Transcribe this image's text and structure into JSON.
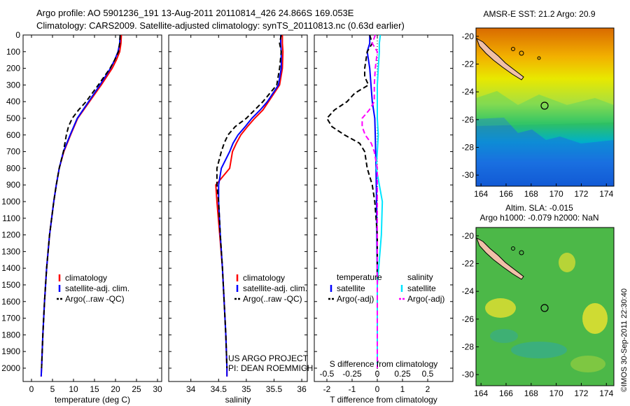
{
  "header": {
    "line1": "Argo profile: AO 5901236_191 13-Aug-2011 20110814_426 24.866S 169.053E",
    "line2": "Climatology: CARS2009. Satellite-adjusted climatology: synTS_20110813.nc (0.63d earlier)"
  },
  "credit": "©IMOS 30-Sep-2011 22:30:40",
  "colors": {
    "climatology": "#ff0000",
    "satellite": "#0000ff",
    "argo": "#000000",
    "sat_s": "#00e5ff",
    "argo_s": "#ff00ff"
  },
  "chart_data": [
    {
      "type": "line",
      "panel": "temperature",
      "xlabel": "temperature (deg C)",
      "ylabel": "",
      "xlim": [
        -2,
        31
      ],
      "ylim": [
        2080,
        0
      ],
      "x_ticks": [
        0,
        5,
        10,
        15,
        20,
        25,
        30
      ],
      "y_ticks": [
        0,
        100,
        200,
        300,
        400,
        500,
        600,
        700,
        800,
        900,
        1000,
        1100,
        1200,
        1300,
        1400,
        1500,
        1600,
        1700,
        1800,
        1900,
        2000
      ],
      "legend": [
        "climatology",
        "satellite-adj. clim.",
        "Argo(..raw -QC)"
      ],
      "series": [
        {
          "name": "climatology",
          "style": "solid",
          "color": "#ff0000",
          "depth": [
            0,
            50,
            100,
            150,
            200,
            300,
            400,
            500,
            600,
            700,
            800,
            900,
            1000,
            1200,
            1400,
            1600,
            1800,
            2000,
            2050
          ],
          "values": [
            21.4,
            21.3,
            21.0,
            20.2,
            19.2,
            16.6,
            13.8,
            11.0,
            9.3,
            7.7,
            6.6,
            5.9,
            5.3,
            4.3,
            3.6,
            3.1,
            2.7,
            2.4,
            2.3
          ]
        },
        {
          "name": "satellite-adj. clim.",
          "style": "solid",
          "color": "#0000ff",
          "depth": [
            0,
            50,
            100,
            150,
            200,
            300,
            400,
            500,
            600,
            700,
            800,
            900,
            1000,
            1200,
            1400,
            1600,
            1800,
            2000,
            2050
          ],
          "values": [
            21.1,
            21.0,
            20.6,
            19.8,
            18.8,
            16.3,
            13.6,
            10.9,
            9.2,
            7.6,
            6.6,
            5.9,
            5.3,
            4.3,
            3.6,
            3.1,
            2.7,
            2.4,
            2.3
          ]
        },
        {
          "name": "Argo(..raw -QC)",
          "style": "dashed",
          "color": "#000000",
          "depth": [
            0,
            50,
            100,
            150,
            200,
            300,
            400,
            450,
            500,
            550,
            600,
            700,
            800,
            900,
            1000,
            1200,
            1400,
            1600,
            1800,
            2000
          ],
          "values": [
            21.1,
            21.0,
            20.7,
            19.8,
            18.7,
            15.9,
            13.0,
            11.2,
            9.7,
            8.8,
            8.3,
            7.6,
            6.6,
            5.9,
            5.3,
            4.3,
            3.6,
            3.1,
            2.7,
            2.4
          ]
        }
      ]
    },
    {
      "type": "line",
      "panel": "salinity",
      "xlabel": "salinity",
      "ylabel": "",
      "xlim": [
        33.6,
        36.1
      ],
      "ylim": [
        2080,
        0
      ],
      "x_ticks": [
        34,
        34.5,
        35,
        35.5,
        36
      ],
      "legend": [
        "climatology",
        "satellite-adj. clim.",
        "Argo(..raw -QC)"
      ],
      "annotation": [
        "US ARGO PROJECT",
        "PI: DEAN ROEMMICH"
      ],
      "series": [
        {
          "name": "climatology",
          "style": "solid",
          "color": "#ff0000",
          "depth": [
            0,
            50,
            100,
            200,
            300,
            400,
            450,
            500,
            550,
            600,
            650,
            700,
            800,
            900,
            1000,
            1200,
            1400,
            1600,
            1800,
            2000,
            2050
          ],
          "values": [
            35.65,
            35.65,
            35.66,
            35.65,
            35.6,
            35.4,
            35.3,
            35.15,
            35.02,
            34.9,
            34.82,
            34.75,
            34.7,
            34.45,
            34.47,
            34.52,
            34.57,
            34.6,
            34.63,
            34.65,
            34.65
          ]
        },
        {
          "name": "satellite-adj. clim.",
          "style": "solid",
          "color": "#0000ff",
          "depth": [
            0,
            50,
            100,
            200,
            300,
            400,
            450,
            500,
            550,
            600,
            650,
            700,
            800,
            900,
            1000,
            1200,
            1400,
            1600,
            1800,
            2000,
            2050
          ],
          "values": [
            35.62,
            35.62,
            35.63,
            35.63,
            35.58,
            35.38,
            35.25,
            35.1,
            34.98,
            34.85,
            34.76,
            34.7,
            34.55,
            34.5,
            34.5,
            34.53,
            34.57,
            34.6,
            34.63,
            34.65,
            34.65
          ]
        },
        {
          "name": "Argo(..raw -QC)",
          "style": "dashed",
          "color": "#000000",
          "depth": [
            0,
            50,
            100,
            200,
            300,
            400,
            450,
            500,
            550,
            600,
            650,
            700,
            800,
            900,
            1000,
            1200,
            1400,
            1600,
            1800,
            2000
          ],
          "values": [
            35.63,
            35.6,
            35.63,
            35.6,
            35.55,
            35.3,
            35.15,
            35.0,
            34.8,
            34.67,
            34.6,
            34.55,
            34.47,
            34.47,
            34.5,
            34.53,
            34.57,
            34.6,
            34.63,
            34.65
          ]
        }
      ]
    },
    {
      "type": "line",
      "panel": "difference",
      "xlabel": "T difference from climatology",
      "x2label": "S difference from climatology",
      "xlim": [
        -2.5,
        3
      ],
      "x_ticks": [
        -2,
        -1,
        0,
        1,
        2
      ],
      "x2_ticks": [
        "-0.5",
        "-0.25",
        "0",
        "0.25",
        "0.5"
      ],
      "legend_temperature": {
        "title": "temperature",
        "items": [
          "satellite",
          "Argo(-adj)"
        ]
      },
      "legend_salinity": {
        "title": "salinity",
        "items": [
          "satellite",
          "Argo(-adj)"
        ]
      },
      "series": [
        {
          "name": "temperature satellite",
          "style": "solid",
          "color": "#0000ff",
          "depth": [
            0,
            50,
            100,
            200,
            300,
            400,
            500,
            600,
            800,
            1000,
            1500,
            2000
          ],
          "values": [
            -0.3,
            -0.3,
            -0.4,
            -0.3,
            -0.25,
            -0.2,
            -0.1,
            -0.08,
            -0.05,
            -0.03,
            0,
            0
          ]
        },
        {
          "name": "temperature Argo(-adj)",
          "style": "dashed",
          "color": "#000000",
          "depth": [
            0,
            50,
            100,
            200,
            250,
            300,
            350,
            400,
            450,
            500,
            550,
            600,
            650,
            700,
            800,
            900,
            1000,
            1200,
            1500,
            2000
          ],
          "values": [
            -0.3,
            -0.2,
            -0.4,
            -0.5,
            -0.5,
            -0.35,
            -0.9,
            -1.2,
            -1.7,
            -2.0,
            -1.8,
            -1.3,
            -0.7,
            -0.5,
            -0.4,
            -0.2,
            -0.1,
            0,
            0,
            0
          ]
        },
        {
          "name": "salinity satellite",
          "style": "solid",
          "color": "#00e5ff",
          "depth": [
            0,
            50,
            100,
            200,
            300,
            400,
            500,
            600,
            700,
            800,
            900,
            1000,
            1200,
            1500,
            1800,
            2000
          ],
          "values": [
            0.03,
            0.02,
            0.02,
            0.01,
            0.0,
            0.0,
            0.0,
            0.01,
            0.0,
            -0.01,
            0.02,
            0.05,
            0.04,
            0.0,
            0.0,
            0.0
          ]
        },
        {
          "name": "salinity Argo(-adj)",
          "style": "dashed",
          "color": "#ff00ff",
          "depth": [
            0,
            50,
            100,
            200,
            300,
            400,
            450,
            500,
            550,
            600,
            650,
            700,
            800,
            900,
            1000,
            1200,
            1500,
            2000
          ],
          "values": [
            -0.02,
            -0.05,
            0.0,
            -0.02,
            -0.03,
            -0.03,
            -0.08,
            -0.15,
            -0.15,
            -0.12,
            -0.06,
            -0.03,
            0.0,
            0.0,
            0.0,
            0.0,
            0.0,
            0.0
          ]
        }
      ]
    },
    {
      "type": "heatmap",
      "panel": "sst_map",
      "title": "AMSR-E SST: 21.2  Argo: 20.9",
      "xlim": [
        163.6,
        174.6
      ],
      "ylim": [
        -30.8,
        -19.4
      ],
      "x_ticks": [
        164,
        166,
        168,
        170,
        172,
        174
      ],
      "y_ticks": [
        -20,
        -22,
        -24,
        -26,
        -28,
        -30
      ],
      "marker": {
        "lon": 169.05,
        "lat": -24.87
      }
    },
    {
      "type": "heatmap",
      "panel": "sla_map",
      "title": [
        "Altim. SLA: -0.015",
        "Argo h1000: -0.079 h2000: NaN"
      ],
      "xlim": [
        163.6,
        174.6
      ],
      "ylim": [
        -30.8,
        -19.4
      ],
      "x_ticks": [
        164,
        166,
        168,
        170,
        172,
        174
      ],
      "y_ticks": [
        -20,
        -22,
        -24,
        -26,
        -28,
        -30
      ],
      "marker": {
        "lon": 169.05,
        "lat": -24.87
      }
    }
  ]
}
